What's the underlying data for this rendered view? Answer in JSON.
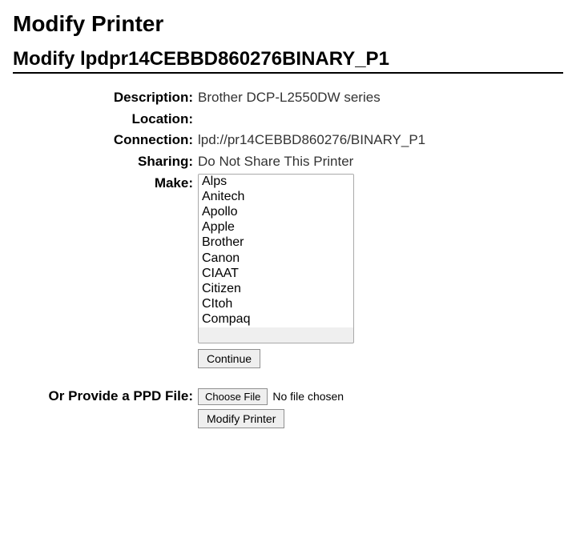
{
  "page_title": "Modify Printer",
  "subtitle": "Modify lpdpr14CEBBD860276BINARY_P1",
  "labels": {
    "description": "Description:",
    "location": "Location:",
    "connection": "Connection:",
    "sharing": "Sharing:",
    "make": "Make:",
    "ppd": "Or Provide a PPD File:"
  },
  "values": {
    "description": "Brother DCP-L2550DW series",
    "location": "",
    "connection": "lpd://pr14CEBBD860276/BINARY_P1",
    "sharing": "Do Not Share This Printer"
  },
  "make_options": [
    "Alps",
    "Anitech",
    "Apollo",
    "Apple",
    "Brother",
    "Canon",
    "CIAAT",
    "Citizen",
    "CItoh",
    "Compaq"
  ],
  "buttons": {
    "continue": "Continue",
    "choose_file": "Choose File",
    "no_file": "No file chosen",
    "modify": "Modify Printer"
  },
  "colors": {
    "text": "#000000",
    "value_text": "#333333",
    "bg": "#ffffff",
    "button_bg": "#efefef",
    "button_border": "#8f8f8f",
    "select_border": "#a9a9a9"
  }
}
